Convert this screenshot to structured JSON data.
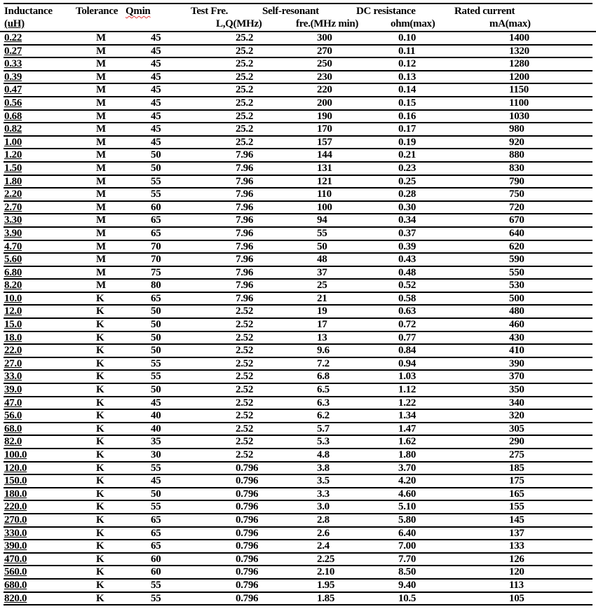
{
  "header": {
    "inductance": "Inductance",
    "inductance_unit": "(uH)",
    "tolerance": "Tolerance",
    "qmin": "Qmin",
    "test_freq": "Test Fre.",
    "test_freq_unit": "L,Q(MHz)",
    "self_resonant": "Self-resonant",
    "self_resonant_unit": "fre.(MHz min)",
    "dc_resistance": "DC resistance",
    "dc_resistance_unit": "ohm(max)",
    "rated_current": "Rated current",
    "rated_current_unit": "mA(max)"
  },
  "rows": [
    [
      "0.22",
      "M",
      "45",
      "25.2",
      "300",
      "0.10",
      "1400"
    ],
    [
      "0.27",
      "M",
      "45",
      "25.2",
      "270",
      "0.11",
      "1320"
    ],
    [
      "0.33",
      "M",
      "45",
      "25.2",
      "250",
      "0.12",
      "1280"
    ],
    [
      "0.39",
      "M",
      "45",
      "25.2",
      "230",
      "0.13",
      "1200"
    ],
    [
      "0.47",
      "M",
      "45",
      "25.2",
      "220",
      "0.14",
      "1150"
    ],
    [
      "0.56",
      "M",
      "45",
      "25.2",
      "200",
      "0.15",
      "1100"
    ],
    [
      "0.68",
      "M",
      "45",
      "25.2",
      "190",
      "0.16",
      "1030"
    ],
    [
      "0.82",
      "M",
      "45",
      "25.2",
      "170",
      "0.17",
      "980"
    ],
    [
      "1.00",
      "M",
      "45",
      "25.2",
      "157",
      "0.19",
      "920"
    ],
    [
      "1.20",
      "M",
      "50",
      "7.96",
      "144",
      "0.21",
      "880"
    ],
    [
      "1.50",
      "M",
      "50",
      "7.96",
      "131",
      "0.23",
      "830"
    ],
    [
      "1.80",
      "M",
      "55",
      "7.96",
      "121",
      "0.25",
      "790"
    ],
    [
      "2.20",
      "M",
      "55",
      "7.96",
      "110",
      "0.28",
      "750"
    ],
    [
      "2.70",
      "M",
      "60",
      "7.96",
      "100",
      "0.30",
      "720"
    ],
    [
      "3.30",
      "M",
      "65",
      "7.96",
      "94",
      "0.34",
      "670"
    ],
    [
      "3.90",
      "M",
      "65",
      "7.96",
      "55",
      "0.37",
      "640"
    ],
    [
      "4.70",
      "M",
      "70",
      "7.96",
      "50",
      "0.39",
      "620"
    ],
    [
      "5.60",
      "M",
      "70",
      "7.96",
      "48",
      "0.43",
      "590"
    ],
    [
      "6.80",
      "M",
      "75",
      "7.96",
      "37",
      "0.48",
      "550"
    ],
    [
      "8.20",
      "M",
      "80",
      "7.96",
      "25",
      "0.52",
      "530"
    ],
    [
      "10.0",
      "K",
      "65",
      "7.96",
      "21",
      "0.58",
      "500"
    ],
    [
      "12.0",
      "K",
      "50",
      "2.52",
      "19",
      "0.63",
      "480"
    ],
    [
      "15.0",
      "K",
      "50",
      "2.52",
      "17",
      "0.72",
      "460"
    ],
    [
      "18.0",
      "K",
      "50",
      "2.52",
      "13",
      "0.77",
      "430"
    ],
    [
      "22.0",
      "K",
      "50",
      "2.52",
      "9.6",
      "0.84",
      "410"
    ],
    [
      "27.0",
      "K",
      "55",
      "2.52",
      "7.2",
      "0.94",
      "390"
    ],
    [
      "33.0",
      "K",
      "55",
      "2.52",
      "6.8",
      "1.03",
      "370"
    ],
    [
      "39.0",
      "K",
      "50",
      "2.52",
      "6.5",
      "1.12",
      "350"
    ],
    [
      "47.0",
      "K",
      "45",
      "2.52",
      "6.3",
      "1.22",
      "340"
    ],
    [
      "56.0",
      "K",
      "40",
      "2.52",
      "6.2",
      "1.34",
      "320"
    ],
    [
      "68.0",
      "K",
      "40",
      "2.52",
      "5.7",
      "1.47",
      "305"
    ],
    [
      "82.0",
      "K",
      "35",
      "2.52",
      "5.3",
      "1.62",
      "290"
    ],
    [
      "100.0",
      "K",
      "30",
      "2.52",
      "4.8",
      "1.80",
      "275"
    ],
    [
      "120.0",
      "K",
      "55",
      "0.796",
      "3.8",
      "3.70",
      "185"
    ],
    [
      "150.0",
      "K",
      "45",
      "0.796",
      "3.5",
      "4.20",
      "175"
    ],
    [
      "180.0",
      "K",
      "50",
      "0.796",
      "3.3",
      "4.60",
      "165"
    ],
    [
      "220.0",
      "K",
      "55",
      "0.796",
      "3.0",
      "5.10",
      "155"
    ],
    [
      "270.0",
      "K",
      "65",
      "0.796",
      "2.8",
      "5.80",
      "145"
    ],
    [
      "330.0",
      "K",
      "65",
      "0.796",
      "2.6",
      "6.40",
      "137"
    ],
    [
      "390.0",
      "K",
      "65",
      "0.796",
      "2.4",
      "7.00",
      "133"
    ],
    [
      "470.0",
      "K",
      "60",
      "0.796",
      "2.25",
      "7.70",
      "126"
    ],
    [
      "560.0",
      "K",
      "60",
      "0.796",
      "2.10",
      "8.50",
      "120"
    ],
    [
      "680.0",
      "K",
      "55",
      "0.796",
      "1.95",
      "9.40",
      "113"
    ],
    [
      "820.0",
      "K",
      "55",
      "0.796",
      "1.85",
      "10.5",
      "105"
    ]
  ]
}
